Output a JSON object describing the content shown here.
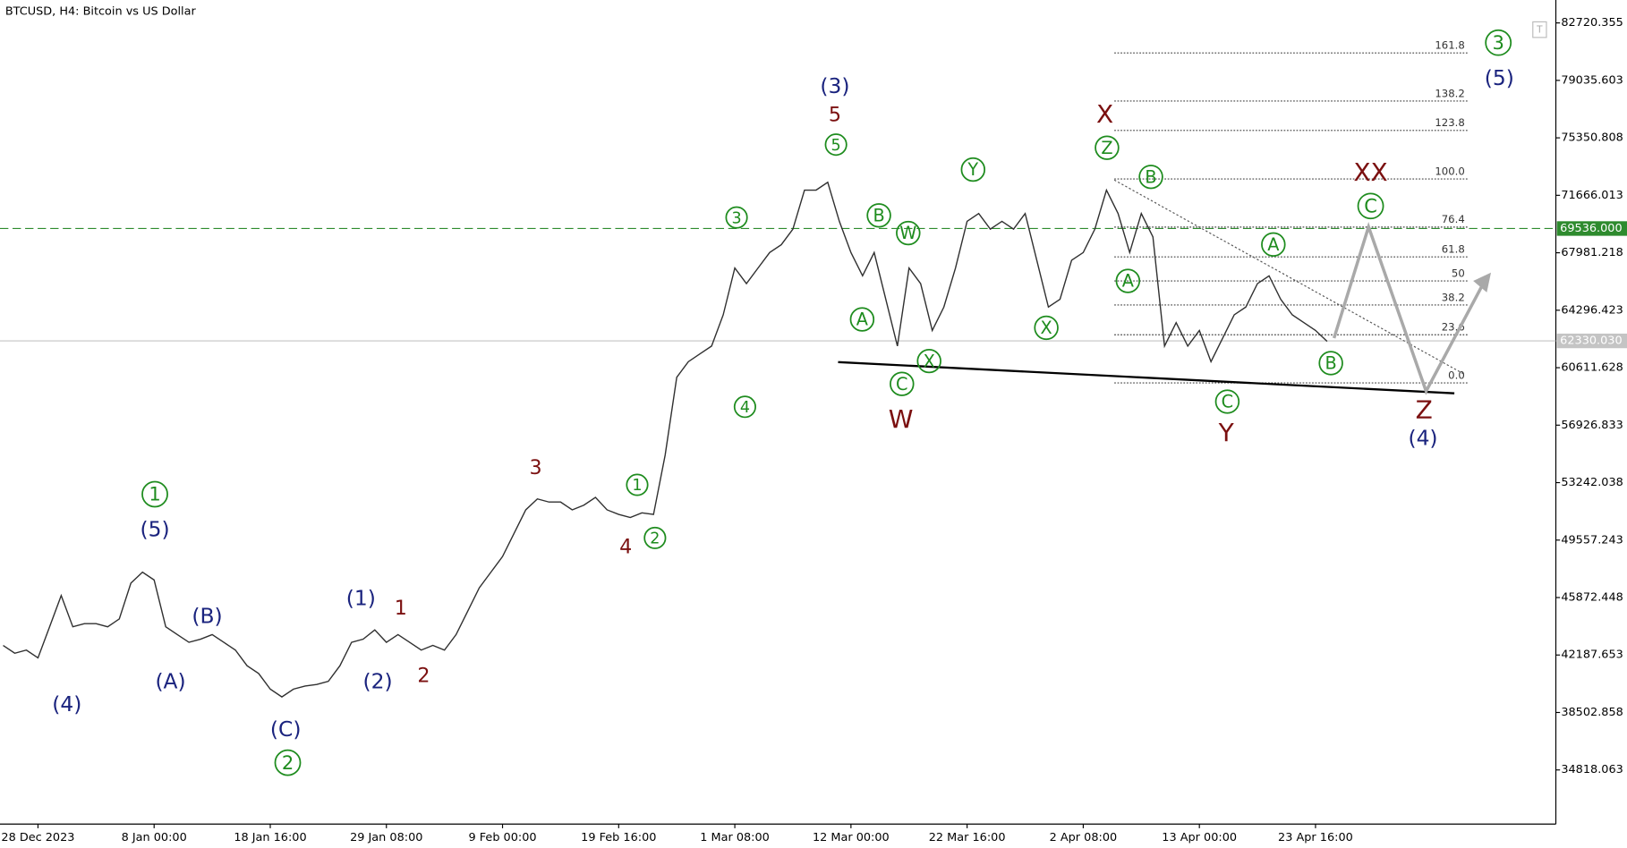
{
  "chart_data": {
    "type": "line",
    "title": "BTCUSD, H4:  Bitcoin vs US Dollar",
    "color": "#303030",
    "categories": [
      null,
      null,
      null,
      "28 Dec 2023",
      null,
      null,
      null,
      null,
      null,
      null,
      null,
      null,
      null,
      "8 Jan 00:00",
      null,
      null,
      null,
      null,
      null,
      null,
      null,
      null,
      null,
      "18 Jan 16:00",
      null,
      null,
      null,
      null,
      null,
      null,
      null,
      null,
      null,
      "29 Jan 08:00",
      null,
      null,
      null,
      null,
      null,
      null,
      null,
      null,
      null,
      "9 Feb 00:00",
      null,
      null,
      null,
      null,
      null,
      null,
      null,
      null,
      null,
      "19 Feb 16:00",
      null,
      null,
      null,
      null,
      null,
      null,
      null,
      null,
      null,
      "1 Mar 08:00",
      null,
      null,
      null,
      null,
      null,
      null,
      null,
      null,
      null,
      "12 Mar 00:00",
      null,
      null,
      null,
      null,
      null,
      null,
      null,
      null,
      null,
      "22 Mar 16:00",
      null,
      null,
      null,
      null,
      null,
      null,
      null,
      null,
      null,
      "2 Apr 08:00",
      null,
      null,
      null,
      null,
      null,
      null,
      null,
      null,
      null,
      "13 Apr 00:00",
      null,
      null,
      null,
      null,
      null,
      null,
      null,
      null,
      null,
      "23 Apr 16:00",
      null
    ],
    "values": [
      42800,
      42300,
      42500,
      42000,
      44000,
      46000,
      44000,
      44200,
      44200,
      44000,
      44500,
      46800,
      47500,
      47000,
      44000,
      43500,
      43000,
      43200,
      43500,
      43000,
      42500,
      41500,
      41000,
      40000,
      39500,
      40000,
      40200,
      40300,
      40500,
      41500,
      43000,
      43200,
      43800,
      43000,
      43500,
      43000,
      42500,
      42800,
      42500,
      43500,
      45000,
      46500,
      47500,
      48500,
      50000,
      51500,
      52200,
      52000,
      52000,
      51500,
      51800,
      52300,
      51500,
      51200,
      51000,
      51300,
      51200,
      55000,
      60000,
      61000,
      61500,
      62000,
      64000,
      67000,
      66000,
      67000,
      68000,
      68500,
      69500,
      72000,
      72000,
      72500,
      70000,
      68000,
      66500,
      68000,
      65000,
      62000,
      67000,
      66000,
      63000,
      64500,
      67000,
      70000,
      70500,
      69500,
      70000,
      69500,
      70500,
      67500,
      64500,
      65000,
      67500,
      68000,
      69500,
      72000,
      70500,
      68000,
      70500,
      69000,
      62000,
      63500,
      62000,
      63000,
      61000,
      62500,
      64000,
      64500,
      66000,
      66500,
      65000,
      64000,
      63500,
      63000,
      62300
    ],
    "ylim": [
      31347,
      84190
    ],
    "yticks": [
      82720.355,
      79035.603,
      75350.808,
      71666.013,
      67981.218,
      64296.423,
      60611.628,
      56926.833,
      53242.038,
      49557.243,
      45872.448,
      42187.653,
      38502.858,
      34818.063
    ],
    "hlines": [
      {
        "value": 69536,
        "label": "69536.000",
        "color": "#2e8b2e"
      },
      {
        "value": 62330.03,
        "label": "62330.030",
        "color": "#c4c4c4"
      }
    ],
    "fib_levels": [
      161.8,
      138.2,
      123.8,
      {
        "value": 100,
        "label": "100.0"
      },
      76.4,
      61.8,
      50,
      38.2,
      23.6,
      {
        "value": 0,
        "label": "0.0"
      }
    ],
    "wave_labels_green": [
      "1",
      "2",
      "3",
      "1",
      "2",
      "3",
      "4",
      "5",
      "A",
      "B",
      "W",
      "C",
      "X",
      "Y",
      "X",
      "Z",
      "B",
      "A",
      "A",
      "C",
      "B",
      "C"
    ],
    "wave_labels_blue": [
      "(4)",
      "(5)",
      "(A)",
      "(B)",
      "(C)",
      "(1)",
      "(2)",
      "(3)",
      "(5)",
      "(4)"
    ],
    "wave_labels_red": [
      "1",
      "2",
      "3",
      "4",
      "5",
      "W",
      "X",
      "Y",
      "XX",
      "Z"
    ]
  }
}
